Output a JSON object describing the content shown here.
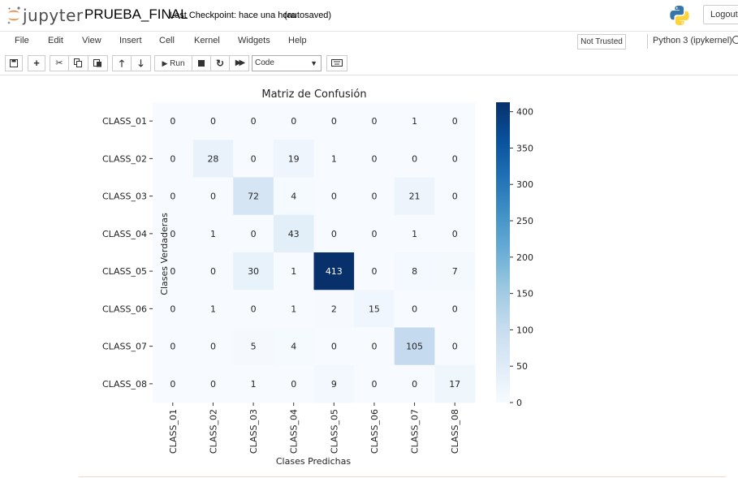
{
  "header": {
    "logo_text": "jupyter",
    "notebook_name": "PRUEBA_FINAL",
    "checkpoint": "Last Checkpoint: hace una hora",
    "autosave": "(autosaved)",
    "logout_label": "Logout"
  },
  "menubar": {
    "items": [
      "File",
      "Edit",
      "View",
      "Insert",
      "Cell",
      "Kernel",
      "Widgets",
      "Help"
    ],
    "trust_label": "Not Trusted",
    "kernel_name": "Python 3 (ipykernel)"
  },
  "toolbar": {
    "run_label": "Run",
    "cell_type": "Code",
    "icons": [
      "save-icon",
      "plus-icon",
      "cut-icon",
      "copy-icon",
      "paste-icon",
      "arrow-up-icon",
      "arrow-down-icon",
      "run-icon",
      "stop-icon",
      "restart-icon",
      "fast-forward-icon",
      "keyboard-icon"
    ]
  },
  "chart_data": {
    "type": "heatmap",
    "title": "Matriz de Confusión",
    "xlabel": "Clases Predichas",
    "ylabel": "Clases Verdaderas",
    "x_categories": [
      "CLASS_01",
      "CLASS_02",
      "CLASS_03",
      "CLASS_04",
      "CLASS_05",
      "CLASS_06",
      "CLASS_07",
      "CLASS_08"
    ],
    "y_categories": [
      "CLASS_01",
      "CLASS_02",
      "CLASS_03",
      "CLASS_04",
      "CLASS_05",
      "CLASS_06",
      "CLASS_07",
      "CLASS_08"
    ],
    "values": [
      [
        0,
        0,
        0,
        0,
        0,
        0,
        1,
        0
      ],
      [
        0,
        28,
        0,
        19,
        1,
        0,
        0,
        0
      ],
      [
        0,
        0,
        72,
        4,
        0,
        0,
        21,
        0
      ],
      [
        0,
        1,
        0,
        43,
        0,
        0,
        1,
        0
      ],
      [
        0,
        0,
        30,
        1,
        413,
        0,
        8,
        7
      ],
      [
        0,
        1,
        0,
        1,
        2,
        15,
        0,
        0
      ],
      [
        0,
        0,
        5,
        4,
        0,
        0,
        105,
        0
      ],
      [
        0,
        0,
        1,
        0,
        9,
        0,
        0,
        17
      ]
    ],
    "colormap": "Blues",
    "vmin": 0,
    "vmax": 413,
    "colorbar_ticks": [
      0,
      50,
      100,
      150,
      200,
      250,
      300,
      350,
      400
    ],
    "colors": {
      "low": "#f7fbff",
      "high": "#08306b"
    }
  }
}
